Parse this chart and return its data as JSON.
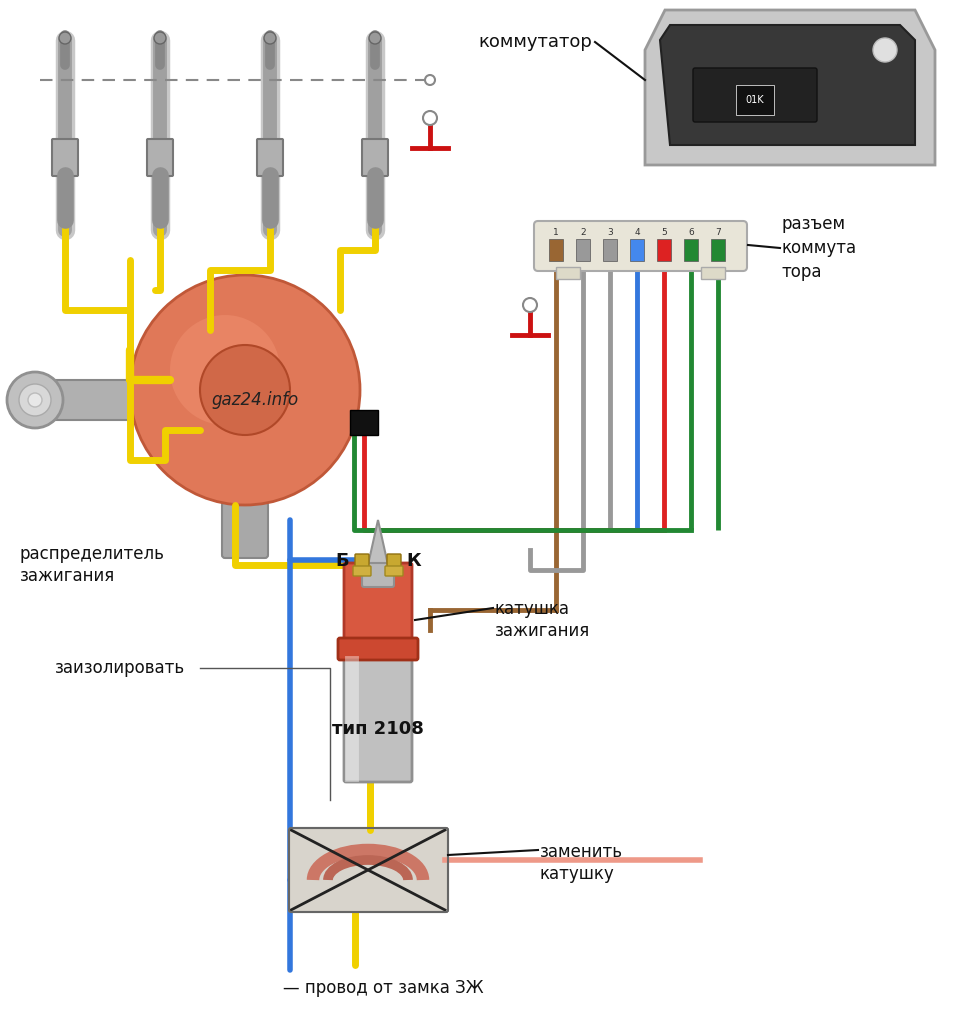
{
  "bg_color": "#ffffff",
  "labels": {
    "kommutator": "коммутатор",
    "razyem": "разъем\nкоммута\nтора",
    "raspredelitel": "распределитель\nзажигания",
    "zaizolirovat": "заизолировать",
    "katushka": "катушка\nзажигания",
    "tip": "тип 2108",
    "zamenity": "заменить\nкатушку",
    "provod": "— провод от замка ЗЖ",
    "gaz24": "gaz24.info",
    "B_label": "Б",
    "K_label": "К"
  },
  "wire_colors": {
    "yellow": "#f0d000",
    "blue": "#3377dd",
    "red": "#dd2222",
    "green": "#228833",
    "brown": "#996633",
    "gray": "#999999",
    "orange_pink": "#ee9988"
  },
  "connector_pin_colors": [
    "#996633",
    "#999999",
    "#999999",
    "#4488ee",
    "#dd2222",
    "#228833",
    "#228833"
  ],
  "connector_pins": [
    "1",
    "2",
    "3",
    "4",
    "5",
    "6",
    "7"
  ]
}
